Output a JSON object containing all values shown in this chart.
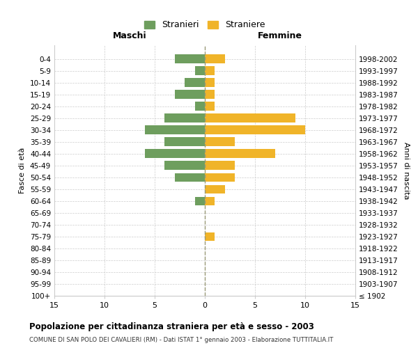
{
  "age_groups": [
    "0-4",
    "5-9",
    "10-14",
    "15-19",
    "20-24",
    "25-29",
    "30-34",
    "35-39",
    "40-44",
    "45-49",
    "50-54",
    "55-59",
    "60-64",
    "65-69",
    "70-74",
    "75-79",
    "80-84",
    "85-89",
    "90-94",
    "95-99",
    "100+"
  ],
  "birth_years": [
    "1998-2002",
    "1993-1997",
    "1988-1992",
    "1983-1987",
    "1978-1982",
    "1973-1977",
    "1968-1972",
    "1963-1967",
    "1958-1962",
    "1953-1957",
    "1948-1952",
    "1943-1947",
    "1938-1942",
    "1933-1937",
    "1928-1932",
    "1923-1927",
    "1918-1922",
    "1913-1917",
    "1908-1912",
    "1903-1907",
    "≤ 1902"
  ],
  "maschi": [
    3,
    1,
    2,
    3,
    1,
    4,
    6,
    4,
    6,
    4,
    3,
    0,
    1,
    0,
    0,
    0,
    0,
    0,
    0,
    0,
    0
  ],
  "femmine": [
    2,
    1,
    1,
    1,
    1,
    9,
    10,
    3,
    7,
    3,
    3,
    2,
    1,
    0,
    0,
    1,
    0,
    0,
    0,
    0,
    0
  ],
  "maschi_color": "#6e9e5e",
  "femmine_color": "#f0b429",
  "title_main": "Popolazione per cittadinanza straniera per età e sesso - 2003",
  "title_sub": "COMUNE DI SAN POLO DEI CAVALIERI (RM) - Dati ISTAT 1° gennaio 2003 - Elaborazione TUTTITALIA.IT",
  "legend_maschi": "Stranieri",
  "legend_femmine": "Straniere",
  "xlabel_left": "Maschi",
  "xlabel_right": "Femmine",
  "ylabel_left": "Fasce di età",
  "ylabel_right": "Anni di nascita",
  "xlim": 15,
  "background_color": "#ffffff",
  "grid_color": "#cccccc",
  "center_line_color": "#999977"
}
